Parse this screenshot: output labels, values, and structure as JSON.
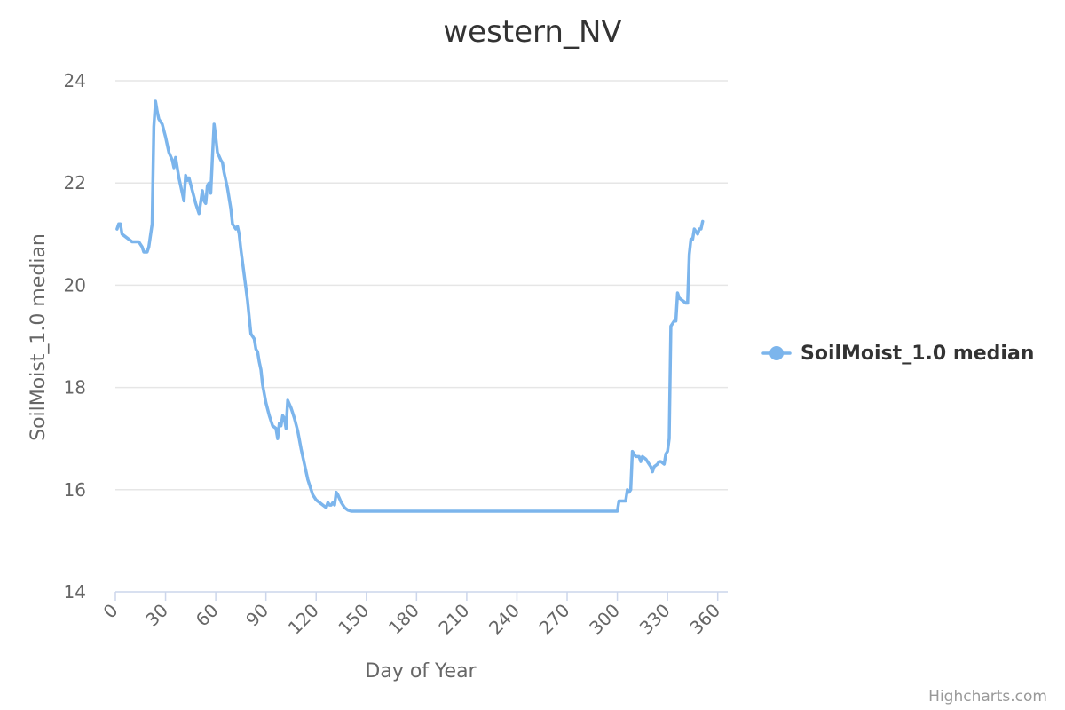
{
  "chart_data": {
    "type": "line",
    "title": "western_NV",
    "xlabel": "Day of Year",
    "ylabel": "SoilMoist_1.0 median",
    "xlim": [
      0,
      366
    ],
    "ylim": [
      14,
      24
    ],
    "x_ticks": [
      0,
      30,
      60,
      90,
      120,
      150,
      180,
      210,
      240,
      270,
      300,
      330,
      360
    ],
    "y_ticks": [
      14,
      16,
      18,
      20,
      22,
      24
    ],
    "grid": "horizontal",
    "legend_position": "right",
    "series": [
      {
        "name": "SoilMoist_1.0 median",
        "color": "#7cb5ec",
        "points": [
          [
            1,
            21.1
          ],
          [
            2,
            21.2
          ],
          [
            3,
            21.2
          ],
          [
            4,
            21.0
          ],
          [
            6,
            20.95
          ],
          [
            8,
            20.9
          ],
          [
            10,
            20.85
          ],
          [
            12,
            20.85
          ],
          [
            14,
            20.85
          ],
          [
            16,
            20.75
          ],
          [
            17,
            20.65
          ],
          [
            19,
            20.65
          ],
          [
            20,
            20.75
          ],
          [
            22,
            21.2
          ],
          [
            23,
            23.1
          ],
          [
            24,
            23.6
          ],
          [
            25,
            23.4
          ],
          [
            26,
            23.25
          ],
          [
            28,
            23.15
          ],
          [
            30,
            22.9
          ],
          [
            32,
            22.6
          ],
          [
            34,
            22.45
          ],
          [
            35,
            22.3
          ],
          [
            36,
            22.5
          ],
          [
            38,
            22.1
          ],
          [
            40,
            21.8
          ],
          [
            41,
            21.65
          ],
          [
            42,
            22.15
          ],
          [
            43,
            22.05
          ],
          [
            44,
            22.1
          ],
          [
            46,
            21.85
          ],
          [
            48,
            21.6
          ],
          [
            50,
            21.4
          ],
          [
            52,
            21.85
          ],
          [
            53,
            21.65
          ],
          [
            54,
            21.6
          ],
          [
            55,
            21.95
          ],
          [
            56,
            22.0
          ],
          [
            57,
            21.8
          ],
          [
            58,
            22.5
          ],
          [
            59,
            23.15
          ],
          [
            60,
            22.9
          ],
          [
            61,
            22.6
          ],
          [
            63,
            22.45
          ],
          [
            64,
            22.4
          ],
          [
            65,
            22.2
          ],
          [
            67,
            21.9
          ],
          [
            69,
            21.5
          ],
          [
            70,
            21.2
          ],
          [
            72,
            21.1
          ],
          [
            73,
            21.15
          ],
          [
            74,
            21.0
          ],
          [
            75,
            20.7
          ],
          [
            77,
            20.2
          ],
          [
            79,
            19.7
          ],
          [
            81,
            19.05
          ],
          [
            82,
            19.0
          ],
          [
            83,
            18.95
          ],
          [
            84,
            18.75
          ],
          [
            85,
            18.7
          ],
          [
            86,
            18.5
          ],
          [
            87,
            18.35
          ],
          [
            88,
            18.05
          ],
          [
            90,
            17.7
          ],
          [
            92,
            17.45
          ],
          [
            94,
            17.25
          ],
          [
            96,
            17.2
          ],
          [
            97,
            17.0
          ],
          [
            98,
            17.3
          ],
          [
            99,
            17.25
          ],
          [
            100,
            17.45
          ],
          [
            101,
            17.4
          ],
          [
            102,
            17.2
          ],
          [
            103,
            17.75
          ],
          [
            105,
            17.6
          ],
          [
            107,
            17.4
          ],
          [
            109,
            17.15
          ],
          [
            111,
            16.8
          ],
          [
            113,
            16.5
          ],
          [
            115,
            16.2
          ],
          [
            117,
            16.0
          ],
          [
            118,
            15.9
          ],
          [
            120,
            15.8
          ],
          [
            122,
            15.75
          ],
          [
            124,
            15.7
          ],
          [
            126,
            15.65
          ],
          [
            127,
            15.75
          ],
          [
            128,
            15.7
          ],
          [
            129,
            15.7
          ],
          [
            130,
            15.75
          ],
          [
            131,
            15.7
          ],
          [
            132,
            15.95
          ],
          [
            133,
            15.9
          ],
          [
            135,
            15.75
          ],
          [
            137,
            15.65
          ],
          [
            139,
            15.6
          ],
          [
            141,
            15.58
          ],
          [
            150,
            15.58
          ],
          [
            180,
            15.58
          ],
          [
            210,
            15.58
          ],
          [
            240,
            15.58
          ],
          [
            270,
            15.58
          ],
          [
            288,
            15.58
          ],
          [
            300,
            15.58
          ],
          [
            301,
            15.78
          ],
          [
            303,
            15.78
          ],
          [
            305,
            15.78
          ],
          [
            306,
            16.0
          ],
          [
            307,
            15.95
          ],
          [
            308,
            16.0
          ],
          [
            309,
            16.75
          ],
          [
            310,
            16.7
          ],
          [
            311,
            16.65
          ],
          [
            313,
            16.65
          ],
          [
            314,
            16.55
          ],
          [
            315,
            16.65
          ],
          [
            317,
            16.6
          ],
          [
            319,
            16.5
          ],
          [
            320,
            16.45
          ],
          [
            321,
            16.35
          ],
          [
            322,
            16.45
          ],
          [
            324,
            16.5
          ],
          [
            325,
            16.55
          ],
          [
            326,
            16.55
          ],
          [
            328,
            16.5
          ],
          [
            329,
            16.7
          ],
          [
            330,
            16.75
          ],
          [
            331,
            17.0
          ],
          [
            332,
            19.2
          ],
          [
            333,
            19.25
          ],
          [
            334,
            19.3
          ],
          [
            335,
            19.3
          ],
          [
            336,
            19.85
          ],
          [
            337,
            19.75
          ],
          [
            339,
            19.7
          ],
          [
            341,
            19.65
          ],
          [
            342,
            19.65
          ],
          [
            343,
            20.6
          ],
          [
            344,
            20.9
          ],
          [
            345,
            20.9
          ],
          [
            346,
            21.1
          ],
          [
            347,
            21.05
          ],
          [
            348,
            21.0
          ],
          [
            349,
            21.1
          ],
          [
            350,
            21.1
          ],
          [
            351,
            21.25
          ]
        ]
      }
    ],
    "credits": "Highcharts.com"
  }
}
